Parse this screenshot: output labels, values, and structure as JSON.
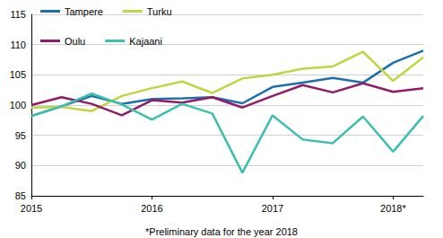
{
  "chart_data": {
    "type": "line",
    "categories": [
      "2015",
      null,
      null,
      null,
      "2016",
      null,
      null,
      null,
      "2017",
      null,
      null,
      null,
      "2018*",
      null
    ],
    "series": [
      {
        "name": "Tampere",
        "color": "#1b6fae",
        "values": [
          98.2,
          99.8,
          101.5,
          100.2,
          101.0,
          101.1,
          101.3,
          100.3,
          103.0,
          103.7,
          104.5,
          103.7,
          107.0,
          109.0
        ]
      },
      {
        "name": "Turku",
        "color": "#bfd541",
        "values": [
          99.6,
          99.7,
          99.0,
          101.5,
          102.8,
          103.9,
          102.0,
          104.4,
          105.0,
          106.0,
          106.4,
          108.8,
          104.0,
          107.9
        ]
      },
      {
        "name": "Oulu",
        "color": "#93196a",
        "values": [
          100.0,
          101.3,
          100.2,
          98.3,
          100.8,
          100.4,
          101.3,
          99.6,
          101.5,
          103.3,
          102.1,
          103.6,
          102.2,
          102.8
        ]
      },
      {
        "name": "Kajaani",
        "color": "#3cbfae",
        "values": [
          98.2,
          99.8,
          101.9,
          100.1,
          97.6,
          100.2,
          98.6,
          88.8,
          98.3,
          94.3,
          93.7,
          98.1,
          92.3,
          98.2
        ]
      }
    ],
    "ylim": [
      85,
      115
    ],
    "yticks": [
      85,
      90,
      95,
      100,
      105,
      110,
      115
    ],
    "grid": true,
    "legend": "top-left",
    "annotations": [
      "*Preliminary data for the year 2018"
    ]
  }
}
